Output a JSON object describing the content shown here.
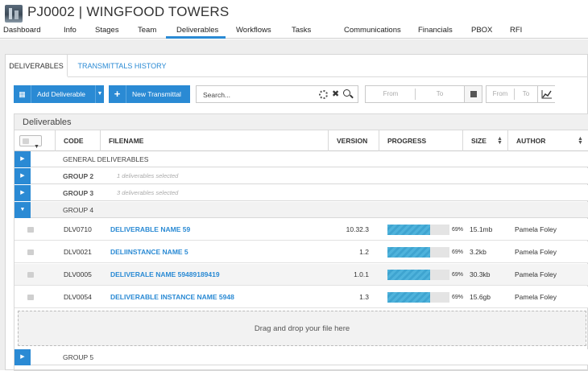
{
  "project": {
    "title": "PJ0002 | WINGFOOD TOWERS"
  },
  "nav": [
    "Dashboard",
    "Info",
    "Stages",
    "Team",
    "Deliverables",
    "Workflows",
    "Tasks",
    "Communications",
    "Financials",
    "PBOX",
    "RFI"
  ],
  "nav_active": "Deliverables",
  "tabs": {
    "deliverables": "DELIVERABLES",
    "transmittals": "TRANSMITTALS HISTORY"
  },
  "toolbar": {
    "add_deliverable": "Add Deliverable",
    "new_transmittal": "New Transmittal",
    "search_placeholder": "Search...",
    "from": "From",
    "to": "To"
  },
  "grid": {
    "title": "Deliverables",
    "columns": {
      "code": "CODE",
      "filename": "FILENAME",
      "version": "VERSION",
      "progress": "PROGRESS",
      "size": "SIZE",
      "author": "AUTHOR"
    },
    "groups": [
      {
        "name": "GENERAL DELIVERABLES",
        "note": ""
      },
      {
        "name": "GROUP 2",
        "note": "1 deliverables selected"
      },
      {
        "name": "GROUP 3",
        "note": "3 deliverables selected"
      },
      {
        "name": "GROUP 4",
        "note": ""
      }
    ],
    "rows": [
      {
        "code": "DLV0710",
        "filename": "DELIVERABLE NAME 59",
        "version": "10.32.3",
        "progress": 69,
        "progress_label": "69%",
        "size": "15.1mb",
        "author": "Pamela Foley"
      },
      {
        "code": "DLV0021",
        "filename": "DELIINSTANCE NAME 5",
        "version": "1.2",
        "progress": 69,
        "progress_label": "69%",
        "size": "3.2kb",
        "author": "Pamela Foley"
      },
      {
        "code": "DLV0005",
        "filename": "DELIVERALE NAME 59489189419",
        "version": "1.0.1",
        "progress": 69,
        "progress_label": "69%",
        "size": "30.3kb",
        "author": "Pamela Foley"
      },
      {
        "code": "DLV0054",
        "filename": "DELIVERABLE INSTANCE NAME 5948",
        "version": "1.3",
        "progress": 69,
        "progress_label": "69%",
        "size": "15.6gb",
        "author": "Pamela Foley"
      }
    ],
    "dropzone": "Drag and drop your file here",
    "group5": "GROUP 5"
  },
  "colors": {
    "accent": "#2a8ad4",
    "progress": "#4fb3dc"
  },
  "icons": {
    "add": "document-plus-icon",
    "transmittal": "plus-icon",
    "search": "magnifier-icon",
    "clear": "close-icon",
    "loading": "spinner-icon",
    "calendar": "calendar-icon",
    "chart": "line-chart-icon"
  }
}
